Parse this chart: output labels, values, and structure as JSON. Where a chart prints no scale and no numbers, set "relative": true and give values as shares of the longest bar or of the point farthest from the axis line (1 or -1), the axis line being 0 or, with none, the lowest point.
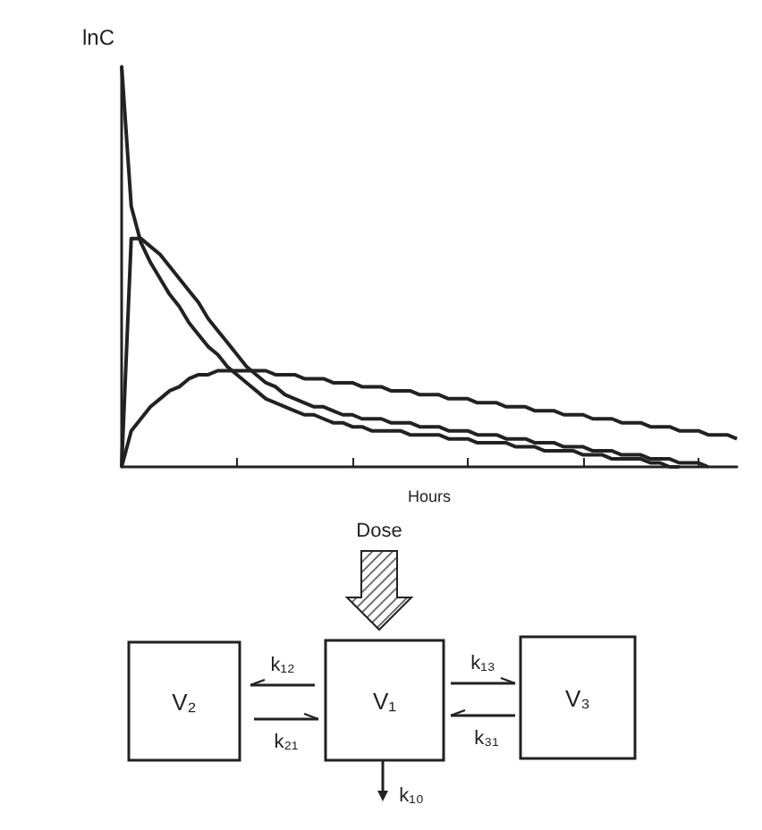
{
  "chart_data": {
    "type": "line",
    "relative": true,
    "ylabel": "lnC",
    "xlabel": "Hours",
    "grid": false,
    "categories": [
      null,
      null,
      null,
      null,
      null,
      null,
      null,
      null,
      null,
      null,
      null,
      null,
      null,
      null,
      null,
      null,
      null,
      null,
      null,
      null,
      null,
      null,
      null,
      null,
      null,
      null,
      null,
      null,
      null,
      null,
      null,
      null,
      null,
      null,
      null,
      null,
      null,
      null,
      null,
      null,
      null,
      null,
      null,
      null,
      null,
      null,
      null,
      null,
      null,
      null,
      null,
      null,
      null,
      null,
      null,
      null,
      null,
      null,
      null,
      null,
      null,
      null,
      null,
      null,
      null
    ],
    "series": [
      {
        "color": "#222222",
        "values": [
          1.0,
          0.65,
          0.56,
          0.51,
          0.47,
          0.43,
          0.4,
          0.36,
          0.33,
          0.3,
          0.28,
          0.25,
          0.23,
          0.21,
          0.19,
          0.17,
          0.16,
          0.15,
          0.14,
          0.13,
          0.13,
          0.12,
          0.11,
          0.11,
          0.1,
          0.1,
          0.09,
          0.09,
          0.09,
          0.09,
          0.08,
          0.08,
          0.08,
          0.08,
          0.07,
          0.07,
          0.07,
          0.06,
          0.06,
          0.06,
          0.06,
          0.05,
          0.05,
          0.05,
          0.04,
          0.04,
          0.04,
          0.04,
          0.03,
          0.03,
          0.03,
          0.02,
          0.02,
          0.02,
          0.02,
          0.01,
          0.01,
          0.0,
          0,
          null,
          null,
          null,
          null,
          null,
          null
        ]
      },
      {
        "color": "#222222",
        "values": [
          0,
          0.57,
          0.57,
          0.55,
          0.53,
          0.5,
          0.47,
          0.44,
          0.41,
          0.37,
          0.34,
          0.31,
          0.28,
          0.25,
          0.23,
          0.21,
          0.2,
          0.18,
          0.17,
          0.16,
          0.15,
          0.15,
          0.14,
          0.13,
          0.13,
          0.12,
          0.12,
          0.12,
          0.11,
          0.11,
          0.11,
          0.1,
          0.1,
          0.1,
          0.09,
          0.09,
          0.09,
          0.08,
          0.08,
          0.08,
          0.07,
          0.07,
          0.07,
          0.06,
          0.06,
          0.06,
          0.05,
          0.05,
          0.05,
          0.04,
          0.04,
          0.04,
          0.03,
          0.03,
          0.03,
          0.02,
          0.02,
          0.02,
          0.01,
          0.01,
          0.01,
          0.0,
          null,
          null,
          null
        ]
      },
      {
        "color": "#222222",
        "values": [
          0,
          0.09,
          0.12,
          0.15,
          0.17,
          0.19,
          0.2,
          0.22,
          0.23,
          0.23,
          0.24,
          0.24,
          0.24,
          0.24,
          0.24,
          0.24,
          0.23,
          0.23,
          0.23,
          0.22,
          0.22,
          0.22,
          0.21,
          0.21,
          0.21,
          0.2,
          0.2,
          0.2,
          0.19,
          0.19,
          0.19,
          0.18,
          0.18,
          0.18,
          0.17,
          0.17,
          0.17,
          0.16,
          0.16,
          0.16,
          0.15,
          0.15,
          0.15,
          0.14,
          0.14,
          0.14,
          0.13,
          0.13,
          0.13,
          0.12,
          0.12,
          0.12,
          0.11,
          0.11,
          0.11,
          0.1,
          0.1,
          0.1,
          0.09,
          0.09,
          0.09,
          0.08,
          0.08,
          0.08,
          0.07
        ]
      }
    ],
    "annotations": [
      "Dose",
      "V₂",
      "V₁",
      "V₃",
      "k₁₂",
      "k₂₁",
      "k₁₃",
      "k₃₁",
      "k₁₀"
    ]
  }
}
